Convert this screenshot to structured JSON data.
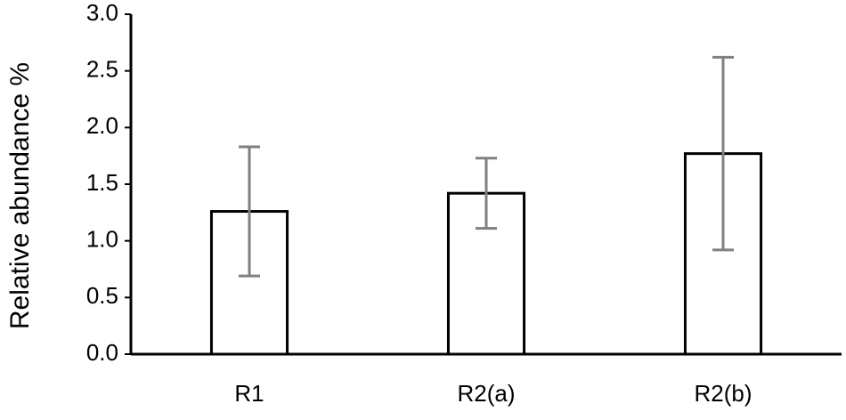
{
  "chart_data": {
    "type": "bar",
    "y_label": "Relative abundance %",
    "categories": [
      "R1",
      "R2(a)",
      "R2(b)"
    ],
    "values": [
      1.26,
      1.42,
      1.77
    ],
    "errors": [
      0.57,
      0.31,
      0.85
    ],
    "color": "#ffffff",
    "edge_color": "#000000",
    "error_color": "#808080",
    "ylim": [
      0,
      3
    ],
    "yticks": [
      {
        "value": 0,
        "label": "0.0"
      },
      0.5,
      {
        "value": 1,
        "label": "1.0"
      },
      1.5,
      {
        "value": 2,
        "label": "2.0"
      },
      2.5,
      {
        "value": 3,
        "label": "3.0"
      }
    ],
    "grid": false
  }
}
